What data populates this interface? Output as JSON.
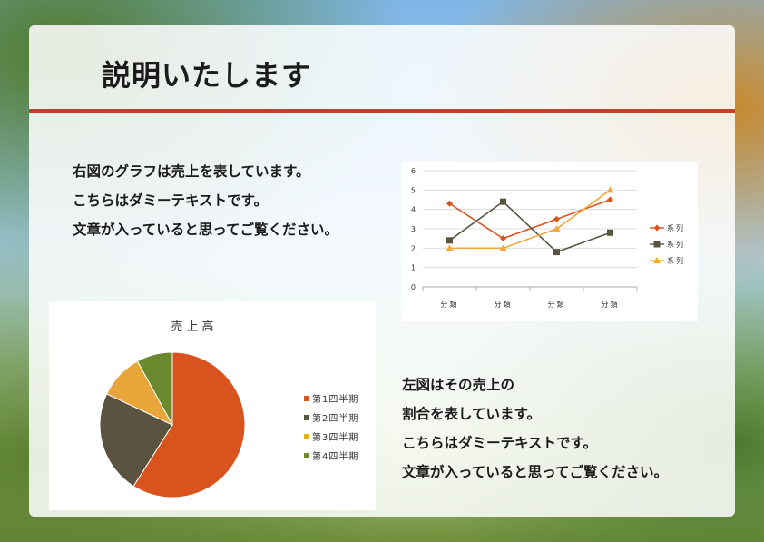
{
  "slide": {
    "title": "説明いたします",
    "top_text": [
      "右図のグラフは売上を表しています。",
      "こちらはダミーテキストです。",
      "文章が入っていると思ってご覧ください。"
    ],
    "bottom_text": [
      "左図はその売上の",
      "割合を表しています。",
      "こちらはダミーテキストです。",
      "文章が入っていると思ってご覧ください。"
    ],
    "accent_color": "#b5462a"
  },
  "chart_data": [
    {
      "type": "line",
      "categories": [
        "分類",
        "分類",
        "分類",
        "分類"
      ],
      "ylim": [
        0,
        6
      ],
      "yticks": [
        0,
        1,
        2,
        3,
        4,
        5,
        6
      ],
      "grid": true,
      "legend": "right",
      "series": [
        {
          "name": "系列",
          "values": [
            4.3,
            2.5,
            3.5,
            4.5
          ],
          "color": "#d9531e",
          "marker": "diamond"
        },
        {
          "name": "系列",
          "values": [
            2.4,
            4.4,
            1.8,
            2.8
          ],
          "color": "#5a5340",
          "marker": "square"
        },
        {
          "name": "系列",
          "values": [
            2.0,
            2.0,
            3.0,
            5.0
          ],
          "color": "#f2a83a",
          "marker": "triangle"
        }
      ]
    },
    {
      "type": "pie",
      "title": "売上高",
      "legend": "right",
      "labels": [
        "第1四半期",
        "第2四半期",
        "第3四半期",
        "第4四半期"
      ],
      "values": [
        59,
        23,
        10,
        8
      ],
      "colors": [
        "#d9531e",
        "#5a5340",
        "#e8a53a",
        "#6b8a2e"
      ]
    }
  ]
}
